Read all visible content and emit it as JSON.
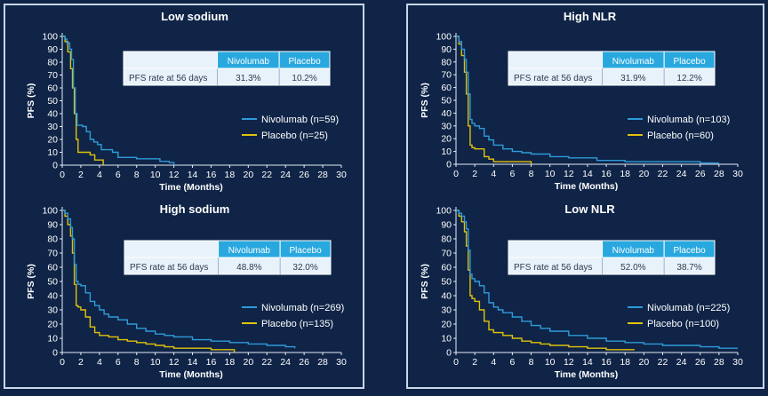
{
  "colors": {
    "background": "#0f2447",
    "nivolumab": "#2f9bd9",
    "placebo": "#e1c20a",
    "axis": "#e6edf7",
    "table_header": "#29a8df",
    "table_body": "#e8f2fb"
  },
  "table_labels": {
    "row_label": "PFS rate at 56 days",
    "col_nivolumab": "Nivolumab",
    "col_placebo": "Placebo"
  },
  "chart_data": [
    {
      "id": "low-sodium",
      "type": "line",
      "title": "Low sodium",
      "xlabel": "Time (Months)",
      "ylabel": "PFS (%)",
      "xlim": [
        0,
        30
      ],
      "ylim": [
        0,
        100
      ],
      "xticks": [
        0,
        2,
        4,
        6,
        8,
        10,
        12,
        14,
        16,
        18,
        20,
        22,
        24,
        26,
        28,
        30
      ],
      "yticks": [
        0,
        10,
        20,
        30,
        40,
        50,
        60,
        70,
        80,
        90,
        100
      ],
      "table": {
        "nivolumab": "31.3%",
        "placebo": "10.2%"
      },
      "series": [
        {
          "name": "Nivolumab (n=59)",
          "color": "#2f9bd9",
          "x": [
            0,
            0.3,
            0.5,
            0.8,
            1.0,
            1.2,
            1.4,
            1.6,
            1.8,
            2.2,
            2.6,
            3.0,
            3.4,
            3.8,
            4.2,
            4.8,
            5.4,
            6.0,
            7.0,
            8.0,
            9.5,
            10.5,
            11.5,
            12.0
          ],
          "y": [
            100,
            98,
            95,
            90,
            82,
            60,
            40,
            31,
            31,
            30,
            26,
            20,
            18,
            16,
            12,
            12,
            10,
            6,
            6,
            5,
            5,
            3,
            2,
            0
          ]
        },
        {
          "name": "Placebo (n=25)",
          "color": "#e1c20a",
          "x": [
            0,
            0.3,
            0.6,
            0.9,
            1.1,
            1.3,
            1.5,
            1.7,
            2.0,
            2.5,
            3.0,
            3.5,
            4.0,
            4.4
          ],
          "y": [
            100,
            96,
            88,
            75,
            60,
            40,
            20,
            10,
            10,
            10,
            8,
            4,
            4,
            0
          ]
        }
      ]
    },
    {
      "id": "high-sodium",
      "type": "line",
      "title": "High sodium",
      "xlabel": "Time (Months)",
      "ylabel": "PFS (%)",
      "xlim": [
        0,
        30
      ],
      "ylim": [
        0,
        100
      ],
      "xticks": [
        0,
        2,
        4,
        6,
        8,
        10,
        12,
        14,
        16,
        18,
        20,
        22,
        24,
        26,
        28,
        30
      ],
      "yticks": [
        0,
        10,
        20,
        30,
        40,
        50,
        60,
        70,
        80,
        90,
        100
      ],
      "table": {
        "nivolumab": "48.8%",
        "placebo": "32.0%"
      },
      "series": [
        {
          "name": "Nivolumab (n=269)",
          "color": "#2f9bd9",
          "x": [
            0,
            0.3,
            0.6,
            0.9,
            1.1,
            1.3,
            1.5,
            1.7,
            2.0,
            2.5,
            3.0,
            3.5,
            4.0,
            4.5,
            5.0,
            6.0,
            7.0,
            8.0,
            9.0,
            10.0,
            11.0,
            12.0,
            14.0,
            16.0,
            18.0,
            20.0,
            22.0,
            24.0,
            25.0
          ],
          "y": [
            100,
            98,
            94,
            88,
            80,
            62,
            50,
            48,
            47,
            42,
            36,
            33,
            30,
            27,
            25,
            23,
            20,
            17,
            15,
            13,
            12,
            11,
            9,
            8,
            7,
            6,
            5,
            4,
            3
          ]
        },
        {
          "name": "Placebo (n=135)",
          "color": "#e1c20a",
          "x": [
            0,
            0.3,
            0.6,
            0.9,
            1.1,
            1.3,
            1.5,
            1.7,
            2.0,
            2.5,
            3.0,
            3.5,
            4.0,
            5.0,
            6.0,
            7.0,
            8.0,
            9.0,
            10.0,
            11.0,
            12.0,
            14.0,
            16.0,
            17.0,
            18.5
          ],
          "y": [
            100,
            96,
            90,
            82,
            70,
            48,
            33,
            32,
            30,
            25,
            18,
            14,
            12,
            11,
            9,
            8,
            7,
            6,
            5,
            4,
            3,
            3,
            2,
            2,
            0
          ]
        }
      ]
    },
    {
      "id": "high-nlr",
      "type": "line",
      "title": "High NLR",
      "xlabel": "Time (Months)",
      "ylabel": "PFS (%)",
      "xlim": [
        0,
        30
      ],
      "ylim": [
        0,
        100
      ],
      "xticks": [
        0,
        2,
        4,
        6,
        8,
        10,
        12,
        14,
        16,
        18,
        20,
        22,
        24,
        26,
        28,
        30
      ],
      "yticks": [
        0,
        10,
        20,
        30,
        40,
        50,
        60,
        70,
        80,
        90,
        100
      ],
      "table": {
        "nivolumab": "31.9%",
        "placebo": "12.2%"
      },
      "series": [
        {
          "name": "Nivolumab (n=103)",
          "color": "#2f9bd9",
          "x": [
            0,
            0.3,
            0.6,
            0.9,
            1.1,
            1.3,
            1.5,
            1.7,
            2.0,
            2.5,
            3.0,
            3.5,
            4.0,
            5.0,
            6.0,
            7.0,
            8.0,
            10.0,
            12.0,
            15.0,
            18.0,
            22.0,
            26.0,
            28.0
          ],
          "y": [
            100,
            96,
            90,
            82,
            72,
            55,
            35,
            32,
            30,
            28,
            22,
            19,
            15,
            12,
            10,
            9,
            8,
            6,
            5,
            3,
            2,
            2,
            1,
            1
          ]
        },
        {
          "name": "Placebo (n=60)",
          "color": "#e1c20a",
          "x": [
            0,
            0.3,
            0.6,
            0.9,
            1.1,
            1.3,
            1.5,
            1.7,
            2.0,
            2.5,
            3.0,
            3.5,
            4.0,
            5.0,
            6.0,
            7.0,
            8.0
          ],
          "y": [
            100,
            94,
            85,
            72,
            55,
            30,
            15,
            13,
            12,
            12,
            6,
            4,
            2,
            2,
            2,
            2,
            0
          ]
        }
      ]
    },
    {
      "id": "low-nlr",
      "type": "line",
      "title": "Low NLR",
      "xlabel": "Time (Months)",
      "ylabel": "PFS (%)",
      "xlim": [
        0,
        30
      ],
      "ylim": [
        0,
        100
      ],
      "xticks": [
        0,
        2,
        4,
        6,
        8,
        10,
        12,
        14,
        16,
        18,
        20,
        22,
        24,
        26,
        28,
        30
      ],
      "yticks": [
        0,
        10,
        20,
        30,
        40,
        50,
        60,
        70,
        80,
        90,
        100
      ],
      "table": {
        "nivolumab": "52.0%",
        "placebo": "38.7%"
      },
      "series": [
        {
          "name": "Nivolumab (n=225)",
          "color": "#2f9bd9",
          "x": [
            0,
            0.3,
            0.6,
            0.9,
            1.1,
            1.3,
            1.5,
            1.7,
            2.0,
            2.5,
            3.0,
            3.5,
            4.0,
            4.5,
            5.0,
            6.0,
            7.0,
            8.0,
            9.0,
            10.0,
            12.0,
            14.0,
            16.0,
            18.0,
            20.0,
            22.0,
            24.0,
            26.0,
            28.0,
            30.0
          ],
          "y": [
            100,
            98,
            96,
            92,
            87,
            72,
            55,
            52,
            50,
            47,
            42,
            35,
            32,
            30,
            28,
            25,
            22,
            19,
            17,
            15,
            12,
            10,
            8,
            7,
            6,
            5,
            5,
            4,
            3,
            3
          ]
        },
        {
          "name": "Placebo (n=100)",
          "color": "#e1c20a",
          "x": [
            0,
            0.3,
            0.6,
            0.9,
            1.1,
            1.3,
            1.5,
            1.7,
            2.0,
            2.5,
            3.0,
            3.5,
            4.0,
            5.0,
            6.0,
            7.0,
            8.0,
            9.0,
            10.0,
            12.0,
            14.0,
            16.0,
            18.0,
            19.0
          ],
          "y": [
            100,
            96,
            92,
            85,
            75,
            58,
            40,
            38,
            36,
            30,
            22,
            16,
            14,
            12,
            10,
            8,
            7,
            6,
            5,
            4,
            3,
            2,
            2,
            2
          ]
        }
      ]
    }
  ]
}
